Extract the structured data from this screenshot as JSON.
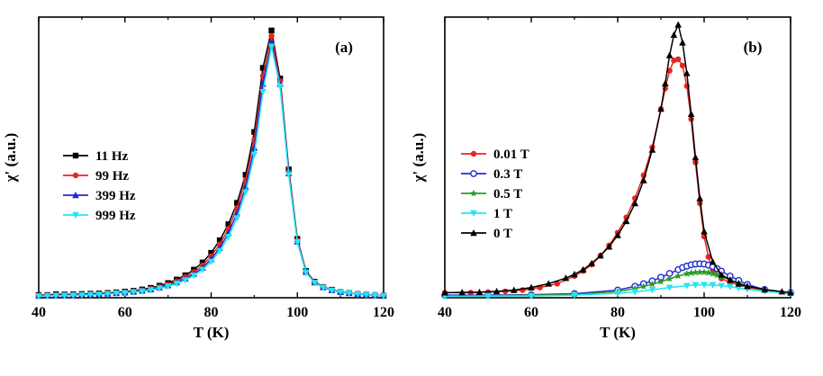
{
  "chart_data": [
    {
      "type": "line",
      "panel_label": "(a)",
      "xlabel": "T (K)",
      "ylabel": "χ' (a.u.)",
      "xlim": [
        40,
        120
      ],
      "ylim": [
        0,
        1.05
      ],
      "xticks": [
        40,
        60,
        80,
        100,
        120
      ],
      "tick_labels": [
        "40",
        "60",
        "80",
        "100",
        "120"
      ],
      "legend_position": "center-left",
      "series": [
        {
          "name": "11 Hz",
          "color": "#000000",
          "marker": "square",
          "x": [
            40,
            42,
            44,
            46,
            48,
            50,
            52,
            54,
            56,
            58,
            60,
            62,
            64,
            66,
            68,
            70,
            72,
            74,
            76,
            78,
            80,
            82,
            84,
            86,
            88,
            90,
            92,
            94,
            96,
            98,
            100,
            102,
            104,
            106,
            108,
            110,
            112,
            114,
            116,
            118,
            120
          ],
          "y": [
            0.01,
            0.01,
            0.013,
            0.012,
            0.013,
            0.014,
            0.015,
            0.016,
            0.018,
            0.02,
            0.023,
            0.026,
            0.031,
            0.037,
            0.045,
            0.055,
            0.068,
            0.084,
            0.105,
            0.132,
            0.168,
            0.215,
            0.275,
            0.355,
            0.46,
            0.62,
            0.86,
            1.0,
            0.82,
            0.48,
            0.22,
            0.1,
            0.06,
            0.04,
            0.03,
            0.022,
            0.018,
            0.014,
            0.012,
            0.01,
            0.008
          ]
        },
        {
          "name": "99 Hz",
          "color": "#e8251f",
          "marker": "circle",
          "x": [
            40,
            42,
            44,
            46,
            48,
            50,
            52,
            54,
            56,
            58,
            60,
            62,
            64,
            66,
            68,
            70,
            72,
            74,
            76,
            78,
            80,
            82,
            84,
            86,
            88,
            90,
            92,
            94,
            96,
            98,
            100,
            102,
            104,
            106,
            108,
            110,
            112,
            114,
            116,
            118,
            120
          ],
          "y": [
            0.008,
            0.009,
            0.01,
            0.01,
            0.011,
            0.012,
            0.013,
            0.014,
            0.016,
            0.018,
            0.021,
            0.024,
            0.028,
            0.034,
            0.041,
            0.05,
            0.062,
            0.077,
            0.096,
            0.121,
            0.155,
            0.2,
            0.258,
            0.335,
            0.44,
            0.59,
            0.83,
            0.98,
            0.81,
            0.47,
            0.215,
            0.098,
            0.058,
            0.04,
            0.029,
            0.022,
            0.018,
            0.014,
            0.012,
            0.01,
            0.008
          ]
        },
        {
          "name": "399 Hz",
          "color": "#1f2bd6",
          "marker": "triangle-up",
          "x": [
            40,
            42,
            44,
            46,
            48,
            50,
            52,
            54,
            56,
            58,
            60,
            62,
            64,
            66,
            68,
            70,
            72,
            74,
            76,
            78,
            80,
            82,
            84,
            86,
            88,
            90,
            92,
            94,
            96,
            98,
            100,
            102,
            104,
            106,
            108,
            110,
            112,
            114,
            116,
            118,
            120
          ],
          "y": [
            0.007,
            0.008,
            0.009,
            0.009,
            0.01,
            0.011,
            0.012,
            0.013,
            0.015,
            0.017,
            0.019,
            0.022,
            0.026,
            0.031,
            0.038,
            0.046,
            0.057,
            0.071,
            0.089,
            0.112,
            0.144,
            0.186,
            0.242,
            0.315,
            0.415,
            0.56,
            0.8,
            0.955,
            0.8,
            0.465,
            0.21,
            0.096,
            0.057,
            0.039,
            0.028,
            0.021,
            0.017,
            0.014,
            0.011,
            0.009,
            0.007
          ]
        },
        {
          "name": "999 Hz",
          "color": "#22e6f2",
          "marker": "triangle-down",
          "x": [
            40,
            42,
            44,
            46,
            48,
            50,
            52,
            54,
            56,
            58,
            60,
            62,
            64,
            66,
            68,
            70,
            72,
            74,
            76,
            78,
            80,
            82,
            84,
            86,
            88,
            90,
            92,
            94,
            96,
            98,
            100,
            102,
            104,
            106,
            108,
            110,
            112,
            114,
            116,
            118,
            120
          ],
          "y": [
            0.006,
            0.007,
            0.008,
            0.008,
            0.009,
            0.01,
            0.011,
            0.012,
            0.014,
            0.016,
            0.018,
            0.021,
            0.024,
            0.029,
            0.035,
            0.043,
            0.053,
            0.066,
            0.083,
            0.105,
            0.135,
            0.175,
            0.228,
            0.298,
            0.395,
            0.535,
            0.77,
            0.94,
            0.79,
            0.46,
            0.208,
            0.094,
            0.056,
            0.038,
            0.027,
            0.021,
            0.017,
            0.013,
            0.011,
            0.009,
            0.007
          ]
        }
      ]
    },
    {
      "type": "line",
      "panel_label": "(b)",
      "xlabel": "T (K)",
      "ylabel": "χ' (a.u.)",
      "xlim": [
        40,
        120
      ],
      "ylim": [
        0,
        1.1
      ],
      "xticks": [
        40,
        60,
        80,
        100,
        120
      ],
      "tick_labels": [
        "40",
        "60",
        "80",
        "100",
        "120"
      ],
      "legend_position": "center-left",
      "series": [
        {
          "name": "0.01 T",
          "color": "#e8251f",
          "marker": "circle",
          "x": [
            40,
            46,
            50,
            54,
            58,
            62,
            66,
            70,
            72,
            74,
            76,
            78,
            80,
            82,
            84,
            86,
            88,
            90,
            91,
            92,
            93,
            94,
            95,
            96,
            97,
            98,
            99,
            100,
            101,
            102,
            104,
            106,
            108,
            110,
            114,
            120
          ],
          "y": [
            0.02,
            0.02,
            0.022,
            0.025,
            0.03,
            0.04,
            0.055,
            0.085,
            0.105,
            0.13,
            0.165,
            0.205,
            0.255,
            0.315,
            0.39,
            0.48,
            0.59,
            0.74,
            0.82,
            0.89,
            0.93,
            0.935,
            0.91,
            0.83,
            0.7,
            0.53,
            0.37,
            0.24,
            0.16,
            0.11,
            0.075,
            0.06,
            0.05,
            0.04,
            0.03,
            0.02
          ]
        },
        {
          "name": "0.3 T",
          "color": "#1f2bd6",
          "marker": "circle-half",
          "x": [
            40,
            50,
            60,
            70,
            80,
            84,
            86,
            88,
            90,
            92,
            94,
            95,
            96,
            97,
            98,
            99,
            100,
            101,
            102,
            103,
            104,
            106,
            108,
            110,
            114,
            120
          ],
          "y": [
            0.01,
            0.01,
            0.012,
            0.016,
            0.03,
            0.045,
            0.055,
            0.066,
            0.08,
            0.095,
            0.11,
            0.118,
            0.124,
            0.129,
            0.132,
            0.133,
            0.132,
            0.128,
            0.122,
            0.114,
            0.104,
            0.085,
            0.068,
            0.052,
            0.032,
            0.02
          ]
        },
        {
          "name": "0.5 T",
          "color": "#2a9a2a",
          "marker": "star",
          "x": [
            40,
            50,
            60,
            70,
            80,
            84,
            86,
            88,
            90,
            92,
            94,
            96,
            97,
            98,
            99,
            100,
            101,
            102,
            103,
            104,
            106,
            108,
            110,
            114,
            120
          ],
          "y": [
            0.008,
            0.008,
            0.01,
            0.013,
            0.024,
            0.036,
            0.044,
            0.053,
            0.063,
            0.074,
            0.085,
            0.094,
            0.097,
            0.099,
            0.1,
            0.1,
            0.098,
            0.094,
            0.089,
            0.083,
            0.07,
            0.057,
            0.045,
            0.03,
            0.018
          ]
        },
        {
          "name": "1 T",
          "color": "#22e6f2",
          "marker": "triangle-down",
          "x": [
            40,
            50,
            60,
            70,
            80,
            84,
            88,
            92,
            96,
            98,
            100,
            102,
            104,
            106,
            108,
            110,
            114,
            120
          ],
          "y": [
            0.005,
            0.006,
            0.007,
            0.01,
            0.017,
            0.023,
            0.031,
            0.04,
            0.047,
            0.05,
            0.051,
            0.05,
            0.047,
            0.043,
            0.038,
            0.033,
            0.025,
            0.016
          ]
        },
        {
          "name": "0 T",
          "color": "#000000",
          "marker": "triangle-up",
          "x": [
            40,
            44,
            48,
            52,
            56,
            60,
            64,
            68,
            70,
            72,
            74,
            76,
            78,
            80,
            82,
            84,
            86,
            88,
            90,
            91,
            92,
            93,
            94,
            95,
            96,
            97,
            98,
            99,
            100,
            102,
            104,
            106,
            108,
            110,
            114,
            118,
            120
          ],
          "y": [
            0.02,
            0.021,
            0.022,
            0.025,
            0.03,
            0.04,
            0.055,
            0.077,
            0.092,
            0.11,
            0.135,
            0.165,
            0.2,
            0.245,
            0.3,
            0.37,
            0.46,
            0.58,
            0.74,
            0.84,
            0.95,
            1.03,
            1.07,
            1.0,
            0.88,
            0.72,
            0.55,
            0.39,
            0.26,
            0.14,
            0.09,
            0.07,
            0.055,
            0.045,
            0.032,
            0.024,
            0.02
          ]
        }
      ]
    }
  ]
}
